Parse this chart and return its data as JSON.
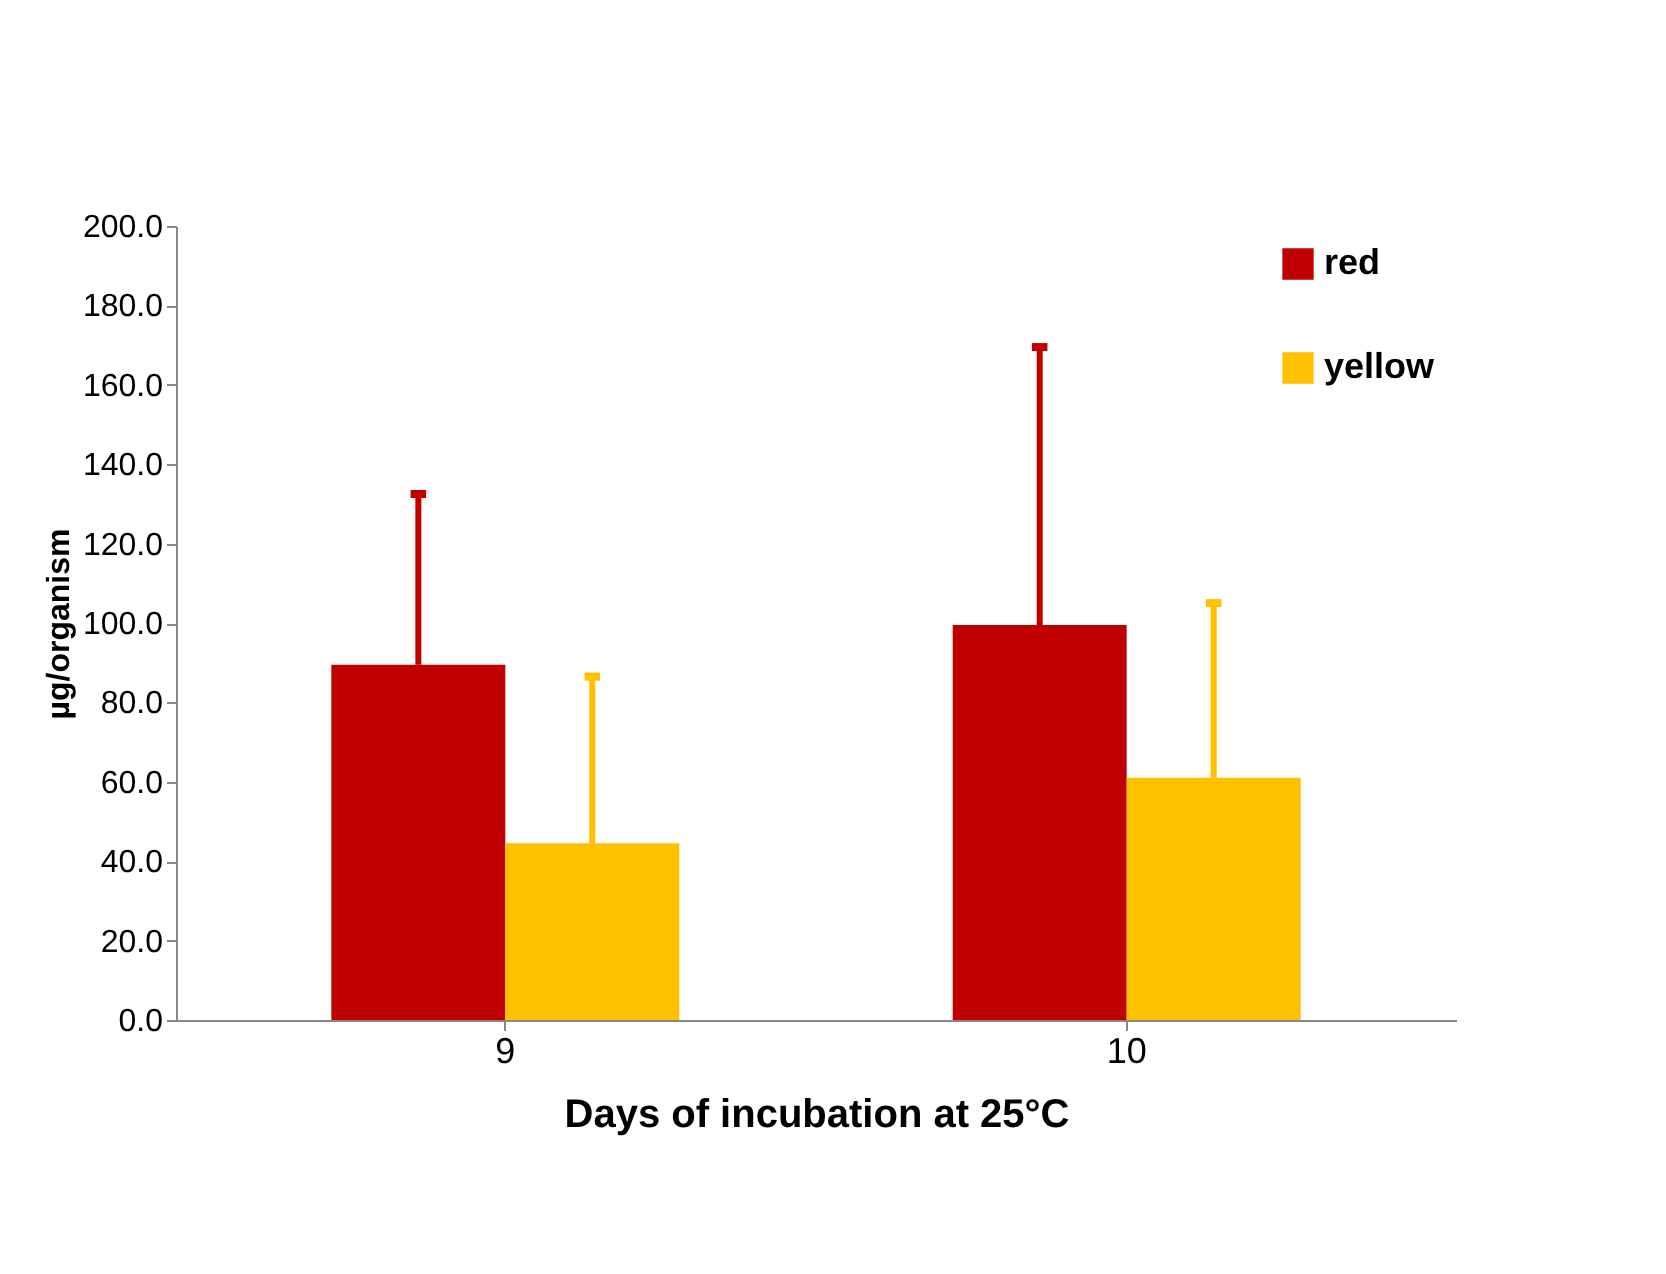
{
  "chart_data": {
    "type": "bar",
    "xlabel": "Days of incubation at 25°C",
    "ylabel": "µg/organism",
    "categories": [
      "9",
      "10"
    ],
    "series": [
      {
        "name": "red",
        "color": "#c00000",
        "values": [
          89.5,
          99.5
        ],
        "errors": [
          [
            89.5,
            132.5
          ],
          [
            99.5,
            169.5
          ]
        ]
      },
      {
        "name": "yellow",
        "color": "#ffc000",
        "values": [
          44.5,
          61
        ],
        "errors": [
          [
            44.5,
            86.5
          ],
          [
            61,
            105
          ]
        ]
      }
    ],
    "ylim": [
      0,
      200
    ],
    "yticks": [
      {
        "value": 0,
        "label": "0.0"
      },
      {
        "value": 20,
        "label": "20.0"
      },
      {
        "value": 40,
        "label": "40.0"
      },
      {
        "value": 60,
        "label": "60.0"
      },
      {
        "value": 80,
        "label": "80.0"
      },
      {
        "value": 100,
        "label": "100.0"
      },
      {
        "value": 120,
        "label": "120.0"
      },
      {
        "value": 140,
        "label": "140.0"
      },
      {
        "value": 160,
        "label": "160.0"
      },
      {
        "value": 180,
        "label": "180.0"
      },
      {
        "value": 200,
        "label": "200.0"
      }
    ],
    "grid": false,
    "legend": "top right"
  }
}
